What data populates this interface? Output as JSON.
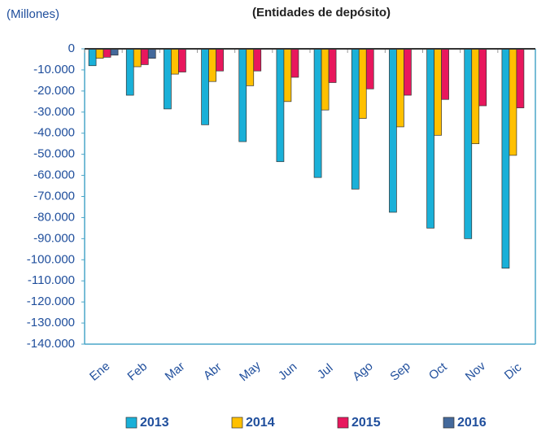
{
  "chart_data": {
    "type": "bar",
    "title": "(Entidades de depósito)",
    "y_label": "(Millones)",
    "categories": [
      "Ene",
      "Feb",
      "Mar",
      "Abr",
      "May",
      "Jun",
      "Jul",
      "Ago",
      "Sep",
      "Oct",
      "Nov",
      "Dic"
    ],
    "series": [
      {
        "name": "2013",
        "color": "#1ab0d8",
        "values": [
          -8000,
          -22000,
          -28500,
          -36000,
          -44000,
          -53500,
          -61000,
          -66500,
          -77500,
          -85000,
          -90000,
          -104000
        ]
      },
      {
        "name": "2014",
        "color": "#ffc000",
        "values": [
          -4500,
          -8500,
          -12000,
          -15500,
          -17500,
          -25000,
          -29000,
          -33000,
          -37000,
          -41000,
          -45000,
          -50500
        ]
      },
      {
        "name": "2015",
        "color": "#e8175d",
        "values": [
          -4000,
          -7500,
          -11000,
          -10500,
          -10500,
          -13500,
          -16000,
          -19000,
          -22000,
          -24000,
          -27000,
          -28000
        ]
      },
      {
        "name": "2016",
        "color": "#44699b",
        "values": [
          -3000,
          -4500,
          null,
          null,
          null,
          null,
          null,
          null,
          null,
          null,
          null,
          null
        ]
      }
    ],
    "ylim": [
      -140000,
      0
    ],
    "yticks": [
      0,
      {
        "value": -10000,
        "label": "-10.000"
      },
      {
        "value": -20000,
        "label": "-20.000"
      },
      {
        "value": -30000,
        "label": "-30.000"
      },
      {
        "value": -40000,
        "label": "-40.000"
      },
      {
        "value": -50000,
        "label": "-50.000"
      },
      {
        "value": -60000,
        "label": "-60.000"
      },
      {
        "value": -70000,
        "label": "-70.000"
      },
      {
        "value": -80000,
        "label": "-80.000"
      },
      {
        "value": -90000,
        "label": "-90.000"
      },
      {
        "value": -100000,
        "label": "-100.000"
      },
      {
        "value": -110000,
        "label": "-110.000"
      },
      {
        "value": -120000,
        "label": "-120.000"
      },
      {
        "value": -130000,
        "label": "-130.000"
      },
      {
        "value": -140000,
        "label": "-140.000"
      }
    ],
    "grid": false
  }
}
